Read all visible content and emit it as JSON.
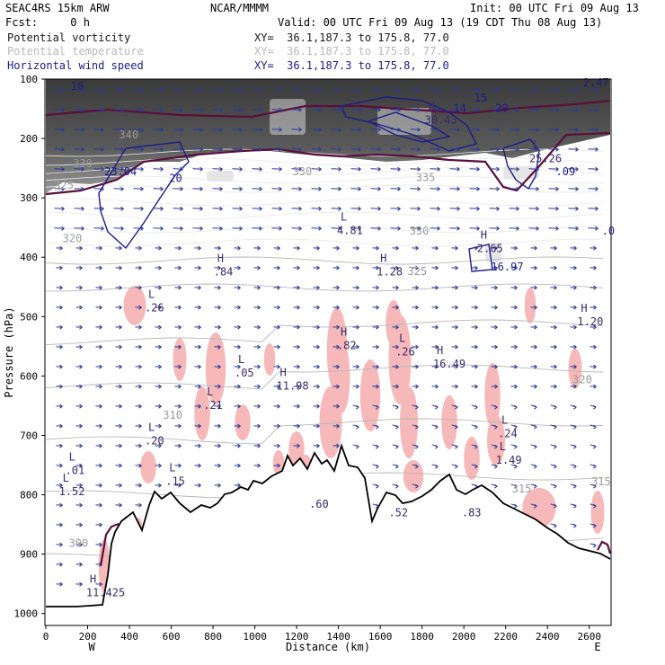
{
  "header": {
    "model": "SEAC4RS 15km ARW",
    "org": "NCAR/MMMM",
    "init": "Init: 00 UTC Fri 09 Aug 13",
    "fcst": "Fcst:     0 h",
    "valid": "Valid: 00 UTC Fri 09 Aug 13 (19 CDT Thu 08 Aug 13)",
    "fields": [
      {
        "name": "Potential vorticity",
        "xy": "XY=  36.1,187.3 to 175.8, 77.0"
      },
      {
        "name": "Potential temperature",
        "xy": "XY=  36.1,187.3 to 175.8, 77.0"
      },
      {
        "name": "Horizontal wind speed",
        "xy": "XY=  36.1,187.3 to 175.8, 77.0"
      }
    ]
  },
  "colors": {
    "pv": "#1a1a1a",
    "theta": "#b8b8b8",
    "wind": "#1c1c8a",
    "tropopause": "#5a0f3c",
    "shading": "#f6b8b8",
    "vectors": "#2a3a9a"
  },
  "chart_data": {
    "type": "cross-section",
    "xlabel": "Distance (km)",
    "ylabel": "Pressure (hPa)",
    "xlim": [
      0,
      2700
    ],
    "ylim": [
      1020,
      100
    ],
    "x_ticks": [
      "0",
      "200",
      "400",
      "600",
      "800",
      "1000",
      "1200",
      "1400",
      "1600",
      "1800",
      "2000",
      "2200",
      "2400",
      "2600"
    ],
    "y_ticks": [
      "100",
      "200",
      "300",
      "400",
      "500",
      "600",
      "700",
      "800",
      "900",
      "1000"
    ],
    "endpoints": {
      "left": "W",
      "right": "E"
    },
    "theta_labels": [
      {
        "text": "340",
        "x": 350,
        "p": 200
      },
      {
        "text": "330",
        "x": 130,
        "p": 248
      },
      {
        "text": "325",
        "x": 40,
        "p": 285
      },
      {
        "text": "320",
        "x": 80,
        "p": 375
      },
      {
        "text": "330",
        "x": 1180,
        "p": 262
      },
      {
        "text": "335",
        "x": 1770,
        "p": 272
      },
      {
        "text": "330",
        "x": 1740,
        "p": 362
      },
      {
        "text": "325",
        "x": 1730,
        "p": 430
      },
      {
        "text": "320",
        "x": 2520,
        "p": 612
      },
      {
        "text": "310",
        "x": 560,
        "p": 672
      },
      {
        "text": "300",
        "x": 110,
        "p": 888
      },
      {
        "text": "315",
        "x": 2610,
        "p": 784
      },
      {
        "text": "315",
        "x": 2230,
        "p": 796
      }
    ],
    "extrema": [
      {
        "type": "L",
        "value": "4.81",
        "x": 1410,
        "p": 358
      },
      {
        "type": "H",
        "value": "2.65",
        "x": 2080,
        "p": 388
      },
      {
        "type": "H",
        "value": ".84",
        "x": 820,
        "p": 428
      },
      {
        "type": "H",
        "value": "1.28",
        "x": 1600,
        "p": 428
      },
      {
        "type": "L",
        "value": ".26",
        "x": 490,
        "p": 488
      },
      {
        "type": "H",
        "value": "1.20",
        "x": 2560,
        "p": 512
      },
      {
        "type": "H",
        "value": ".82",
        "x": 1410,
        "p": 552
      },
      {
        "type": "L",
        "value": ".26",
        "x": 1690,
        "p": 562
      },
      {
        "type": "H",
        "value": "16.49",
        "x": 1870,
        "p": 583
      },
      {
        "type": "L",
        "value": ".05",
        "x": 920,
        "p": 598
      },
      {
        "type": "H",
        "value": "11.98",
        "x": 1120,
        "p": 620
      },
      {
        "type": "L",
        "value": ".21",
        "x": 770,
        "p": 652
      },
      {
        "type": "L",
        "value": ".20",
        "x": 490,
        "p": 712
      },
      {
        "type": "L",
        "value": ".01",
        "x": 110,
        "p": 762
      },
      {
        "type": "L",
        "value": "1.52",
        "x": 80,
        "p": 798
      },
      {
        "type": "L",
        "value": ".15",
        "x": 590,
        "p": 780
      },
      {
        "type": "L",
        "value": ".24",
        "x": 2180,
        "p": 700
      },
      {
        "type": "L",
        "value": "1.49",
        "x": 2170,
        "p": 745
      },
      {
        "type": "H",
        "value": "30.43",
        "x": 1830,
        "p": 172
      },
      {
        "type": "L",
        "value": "25.26",
        "x": 2330,
        "p": 237
      },
      {
        "type": "H",
        "value": "11.425",
        "x": 210,
        "p": 968
      }
    ],
    "wind_labels": [
      {
        "text": "10",
        "x": 120,
        "p": 118
      },
      {
        "text": "2.47",
        "x": 2570,
        "p": 112
      },
      {
        "text": "15",
        "x": 2050,
        "p": 138
      },
      {
        "text": "14",
        "x": 1950,
        "p": 155
      },
      {
        "text": "20",
        "x": 2150,
        "p": 155
      },
      {
        "text": "20",
        "x": 590,
        "p": 273
      },
      {
        "text": "23.04",
        "x": 280,
        "p": 262
      },
      {
        "text": "16.97",
        "x": 2130,
        "p": 422
      },
      {
        "text": ".09",
        "x": 2440,
        "p": 262
      },
      {
        "text": ".0",
        "x": 2660,
        "p": 362
      }
    ],
    "terrain_labels": [
      {
        "text": ".60",
        "x": 1260,
        "p": 822
      },
      {
        "text": ".52",
        "x": 1640,
        "p": 836
      },
      {
        "text": ".83",
        "x": 1990,
        "p": 836
      }
    ]
  }
}
